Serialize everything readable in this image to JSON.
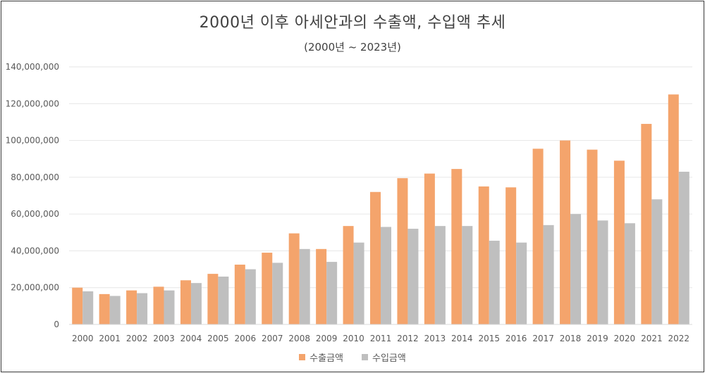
{
  "chart_data": {
    "type": "bar",
    "title": "2000년 이후 아세안과의 수출액, 수입액 추세",
    "subtitle": "(2000년 ~ 2023년)",
    "categories": [
      "2000",
      "2001",
      "2002",
      "2003",
      "2004",
      "2005",
      "2006",
      "2007",
      "2008",
      "2009",
      "2010",
      "2011",
      "2012",
      "2013",
      "2014",
      "2015",
      "2016",
      "2017",
      "2018",
      "2019",
      "2020",
      "2021",
      "2022"
    ],
    "series": [
      {
        "name": "수출금액",
        "color": "#f4a46c",
        "values": [
          20000000,
          16500000,
          18500000,
          20500000,
          24000000,
          27500000,
          32500000,
          39000000,
          49500000,
          41000000,
          53500000,
          72000000,
          79500000,
          82000000,
          84500000,
          75000000,
          74500000,
          95500000,
          100000000,
          95000000,
          89000000,
          109000000,
          125000000
        ]
      },
      {
        "name": "수입금액",
        "color": "#bfbfbf",
        "values": [
          18000000,
          15500000,
          17000000,
          18500000,
          22500000,
          26000000,
          30000000,
          33500000,
          41000000,
          34000000,
          44500000,
          53000000,
          52000000,
          53500000,
          53500000,
          45500000,
          44500000,
          54000000,
          60000000,
          56500000,
          55000000,
          68000000,
          83000000
        ]
      }
    ],
    "ylim": [
      0,
      140000000
    ],
    "yticks": [
      "0",
      "20,000,000",
      "40,000,000",
      "60,000,000",
      "80,000,000",
      "100,000,000",
      "120,000,000",
      "140,000,000"
    ],
    "grid": true,
    "legend_position": "bottom"
  }
}
